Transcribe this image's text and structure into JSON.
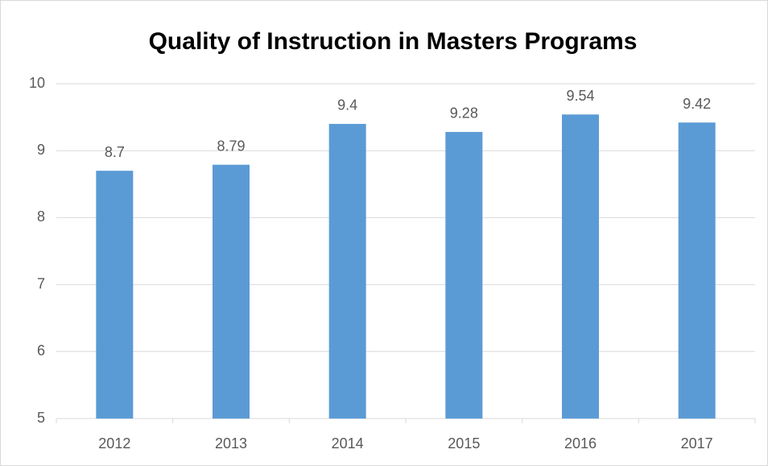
{
  "chart_data": {
    "type": "bar",
    "title": "Quality of Instruction in Masters Programs",
    "categories": [
      "2012",
      "2013",
      "2014",
      "2015",
      "2016",
      "2017"
    ],
    "values": [
      8.7,
      8.79,
      9.4,
      9.28,
      9.54,
      9.42
    ],
    "color": "#5b9bd5",
    "ylim": [
      5,
      10
    ],
    "yticks": [
      5,
      6,
      7,
      8,
      9,
      10
    ],
    "grid": true,
    "data_labels": true
  }
}
